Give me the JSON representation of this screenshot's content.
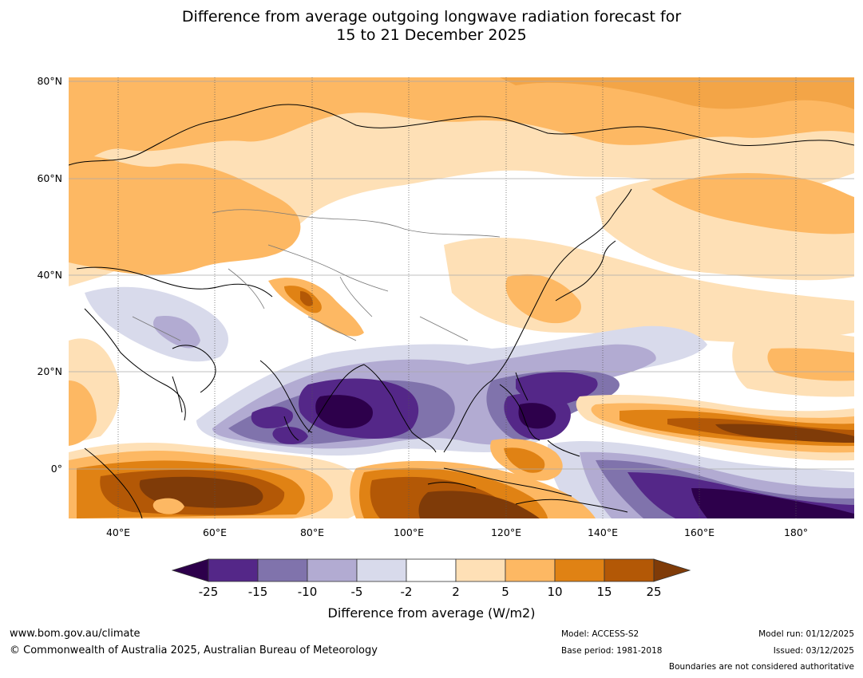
{
  "title_line1": "Difference from average outgoing longwave radiation forecast for",
  "title_line2": "15 to 21 December 2025",
  "lat_labels": [
    "80°N",
    "60°N",
    "40°N",
    "20°N",
    "0°"
  ],
  "lon_labels": [
    "40°E",
    "60°E",
    "80°E",
    "100°E",
    "120°E",
    "140°E",
    "160°E",
    "180°"
  ],
  "colorbar": {
    "ticks": [
      "-25",
      "-15",
      "-10",
      "-5",
      "-2",
      "2",
      "5",
      "10",
      "15",
      "25"
    ],
    "colors": [
      "#2d004b",
      "#542788",
      "#8073ac",
      "#b2abd2",
      "#d8daeb",
      "#ffffff",
      "#fee0b6",
      "#fdb863",
      "#e08214",
      "#b35806",
      "#7f3b08"
    ],
    "title": "Difference from average (W/m2)"
  },
  "footer": {
    "website": "www.bom.gov.au/climate",
    "copyright": "© Commonwealth of Australia 2025, Australian Bureau of Meteorology",
    "model": "Model: ACCESS-S2",
    "base_period": "Base period: 1981-2018",
    "model_run": "Model run: 01/12/2025",
    "issued": "Issued: 03/12/2025",
    "disclaimer": "Boundaries are not considered authoritative"
  }
}
